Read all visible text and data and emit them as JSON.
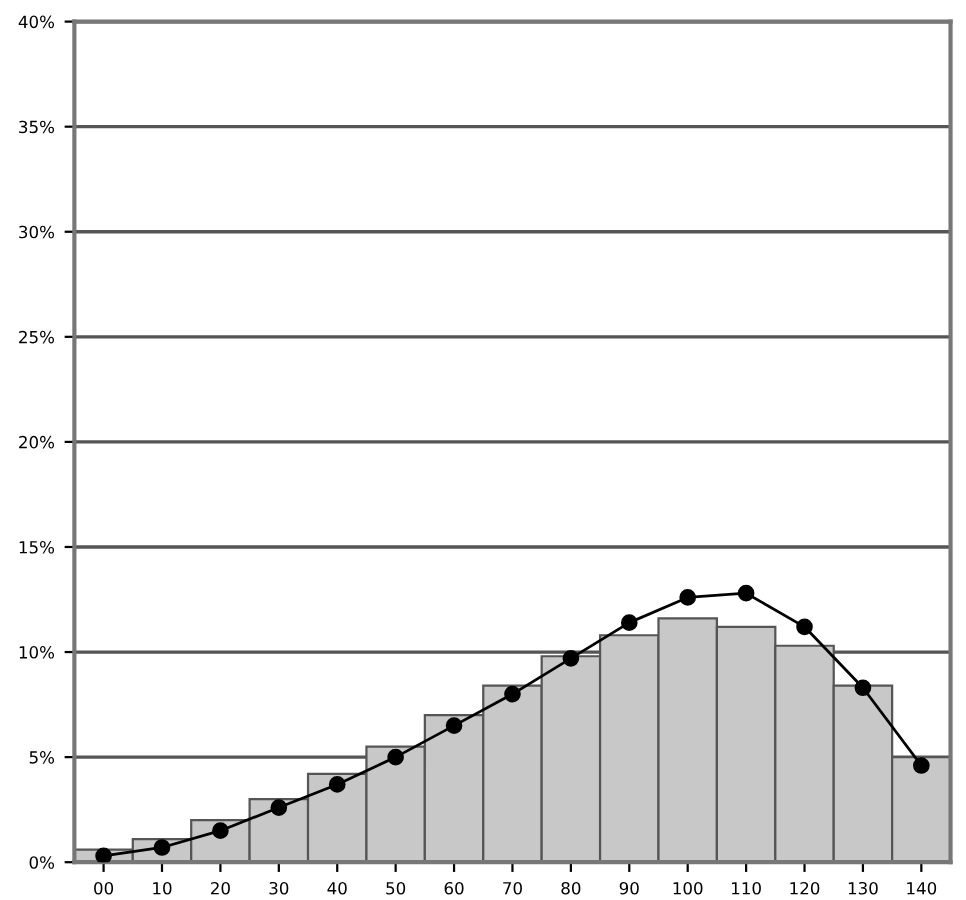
{
  "chart_data": {
    "type": "bar",
    "categories": [
      "00",
      "10",
      "20",
      "30",
      "40",
      "50",
      "60",
      "70",
      "80",
      "90",
      "100",
      "110",
      "120",
      "130",
      "140"
    ],
    "series": [
      {
        "color": "#c8c8c8",
        "values": [
          0.6,
          1.1,
          2.0,
          3.0,
          4.2,
          5.5,
          7.0,
          8.4,
          9.8,
          10.8,
          11.6,
          11.2,
          10.3,
          8.4,
          5.0
        ]
      },
      {
        "type": "line",
        "color": "#000000",
        "marker": "circle",
        "values": [
          0.3,
          0.7,
          1.5,
          2.6,
          3.7,
          5.0,
          6.5,
          8.0,
          9.7,
          11.4,
          12.6,
          12.8,
          11.2,
          8.3,
          4.6
        ]
      }
    ],
    "ylim": [
      0,
      40
    ],
    "yticks": [
      {
        "value": 0,
        "label": "0%"
      },
      {
        "value": 5,
        "label": "5%"
      },
      {
        "value": 10,
        "label": "10%"
      },
      {
        "value": 15,
        "label": "15%"
      },
      {
        "value": 20,
        "label": "20%"
      },
      {
        "value": 25,
        "label": "25%"
      },
      {
        "value": 30,
        "label": "30%"
      },
      {
        "value": 35,
        "label": "35%"
      },
      {
        "value": 40,
        "label": "40%"
      }
    ],
    "grid": "y"
  }
}
